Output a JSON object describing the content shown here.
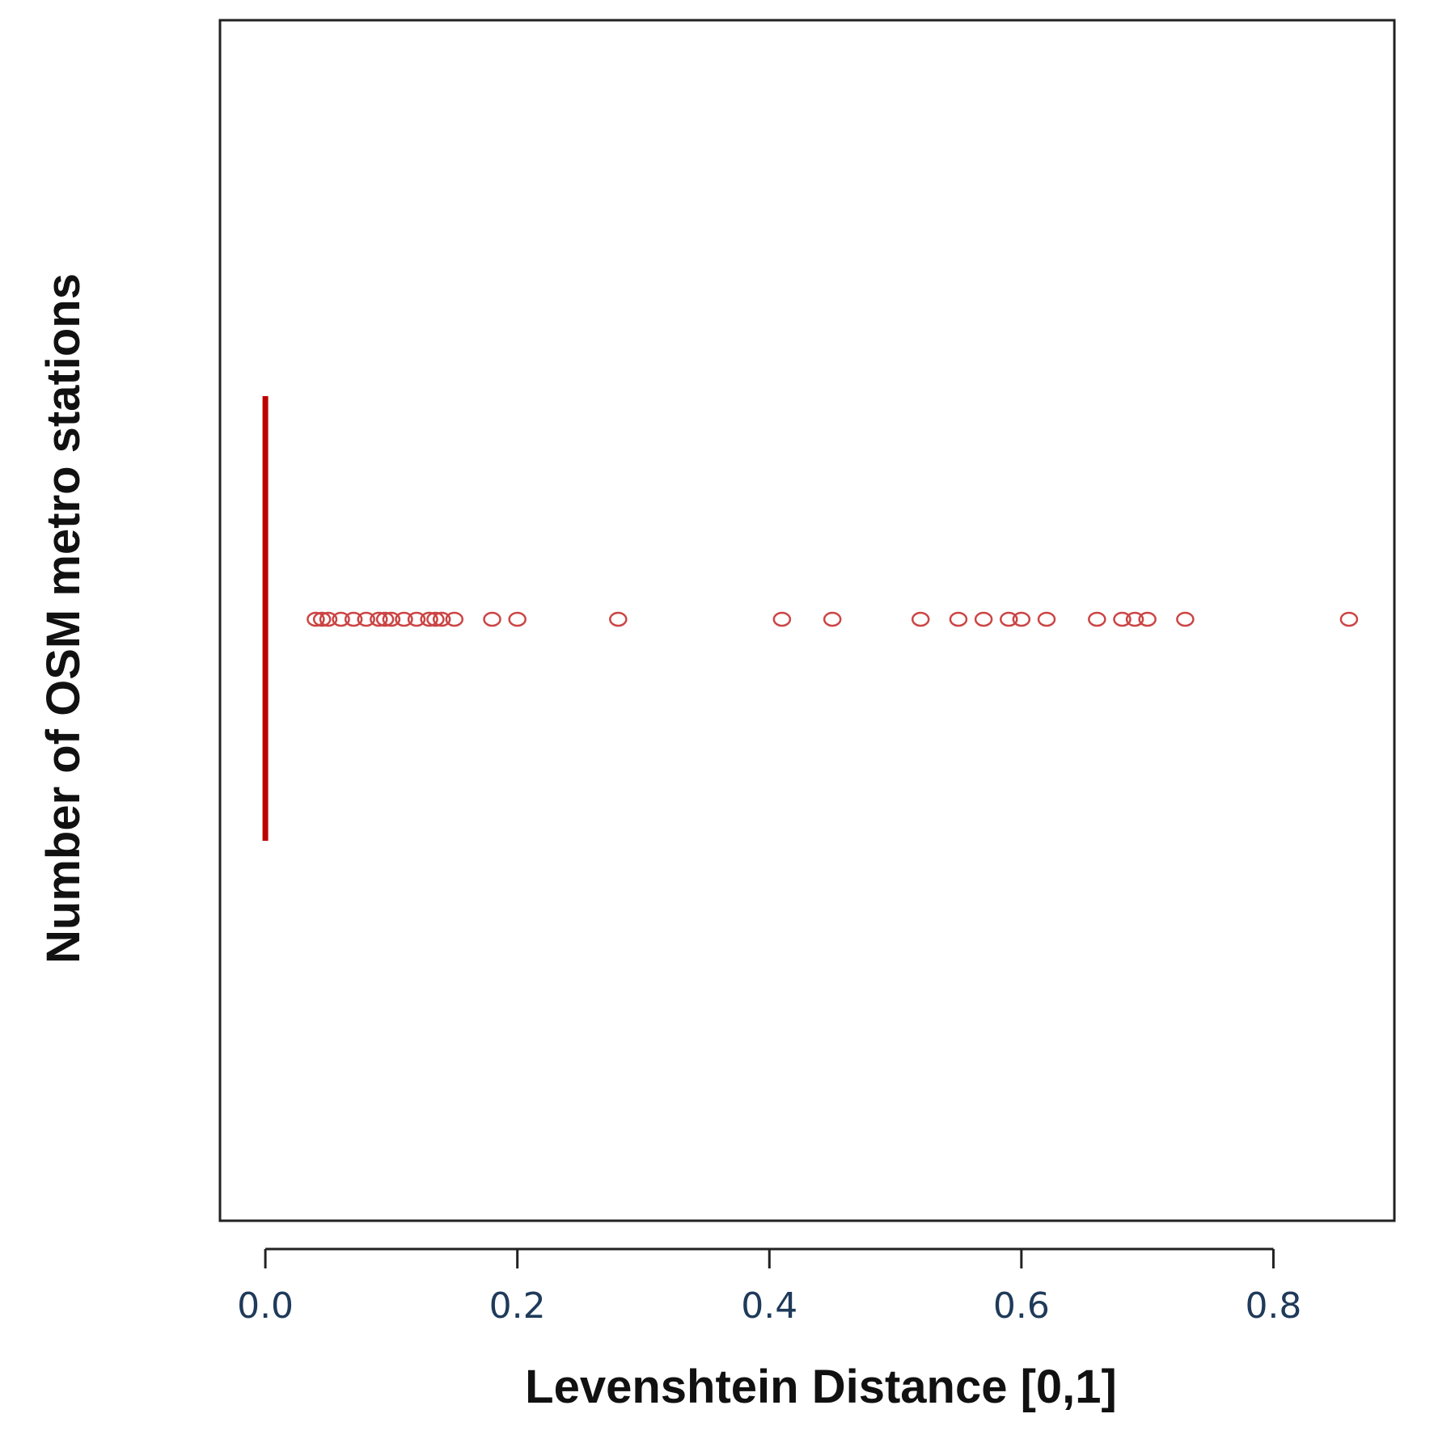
{
  "chart_data": {
    "type": "stripchart",
    "xlabel": "Levenshtein  Distance [0,1]",
    "ylabel": "Number of OSM metro stations",
    "xlim": [
      -0.036,
      0.896
    ],
    "xticks": [
      0.0,
      0.2,
      0.4,
      0.6,
      0.8
    ],
    "xtick_labels": [
      "0.0",
      "0.2",
      "0.4",
      "0.6",
      "0.8"
    ],
    "marker_color": "#cc4444",
    "line_color": "#bb0000",
    "dense_value": 0.0,
    "points": [
      0.04,
      0.045,
      0.05,
      0.06,
      0.07,
      0.08,
      0.09,
      0.095,
      0.1,
      0.11,
      0.12,
      0.13,
      0.135,
      0.14,
      0.15,
      0.18,
      0.2,
      0.28,
      0.41,
      0.45,
      0.52,
      0.55,
      0.57,
      0.59,
      0.6,
      0.62,
      0.66,
      0.68,
      0.69,
      0.7,
      0.73,
      0.86
    ]
  }
}
